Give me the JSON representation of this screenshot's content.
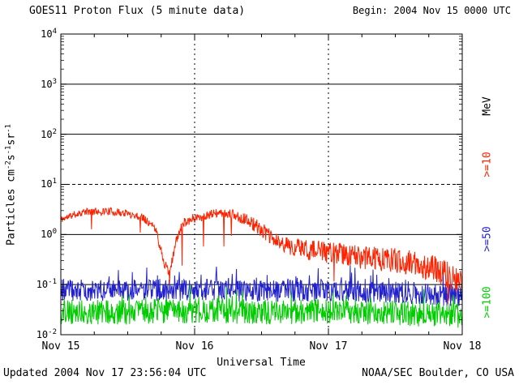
{
  "footer": {
    "updated": "Updated 2004 Nov 17 23:56:04 UTC",
    "source": "NOAA/SEC Boulder, CO USA"
  },
  "chart_data": {
    "type": "line",
    "title": "GOES11 Proton Flux (5 minute data)",
    "begin_label": "Begin: 2004 Nov 15 0000 UTC",
    "xlabel": "Universal Time",
    "ylabel": "Particles cm-2 s-1 sr-1",
    "ylabel_parts": [
      {
        "t": "Particles cm"
      },
      {
        "s": "-2"
      },
      {
        "t": "s"
      },
      {
        "s": "-1"
      },
      {
        "t": "sr"
      },
      {
        "s": "-1"
      }
    ],
    "y_scale": "log10",
    "ylim_log10": [
      -2,
      4
    ],
    "x_range_hours": [
      0,
      72
    ],
    "points": 864,
    "y_ticks": [
      {
        "b": "10",
        "e": "4",
        "log10": 4
      },
      {
        "b": "10",
        "e": "3",
        "log10": 3
      },
      {
        "b": "10",
        "e": "2",
        "log10": 2
      },
      {
        "b": "10",
        "e": "1",
        "log10": 1
      },
      {
        "b": "10",
        "e": "0",
        "log10": 0
      },
      {
        "b": "10",
        "e": "-1",
        "log10": -1
      },
      {
        "b": "10",
        "e": "-2",
        "log10": -2
      }
    ],
    "x_ticks": [
      {
        "label": "Nov 15",
        "hour": 0
      },
      {
        "label": "Nov 16",
        "hour": 24
      },
      {
        "label": "Nov 17",
        "hour": 48
      },
      {
        "label": "Nov 18",
        "hour": 72
      }
    ],
    "ref_lines": {
      "horizontal": [
        {
          "log10": 3,
          "style": "solid"
        },
        {
          "log10": 2,
          "style": "solid"
        },
        {
          "log10": 1,
          "style": "dashed"
        },
        {
          "log10": 0,
          "style": "solid"
        },
        {
          "log10": -1,
          "style": "solid"
        }
      ],
      "vertical_hours": [
        24,
        48
      ]
    },
    "legend": {
      "unit_label": "MeV",
      "entries": [
        {
          "label": ">=10",
          "color": "#ff2200"
        },
        {
          "label": ">=50",
          "color": "#2222cc"
        },
        {
          "label": ">=100",
          "color": "#00cc00"
        }
      ]
    },
    "series": [
      {
        "id": "ge10",
        "name": ">=10 MeV",
        "color": "#ff2200",
        "seed": 11,
        "z": 3,
        "trend_hours": [
          0,
          2,
          4,
          8,
          12,
          15,
          17,
          18.5,
          19.5,
          20.5,
          22,
          24,
          28,
          31,
          34,
          36,
          38,
          40,
          43,
          46,
          48,
          52,
          56,
          60,
          64,
          68,
          70,
          72
        ],
        "trend_log10": [
          0.3,
          0.38,
          0.45,
          0.47,
          0.42,
          0.33,
          0.1,
          -0.55,
          -0.8,
          -0.2,
          0.25,
          0.33,
          0.42,
          0.4,
          0.25,
          0.1,
          -0.1,
          -0.2,
          -0.28,
          -0.33,
          -0.35,
          -0.42,
          -0.48,
          -0.52,
          -0.6,
          -0.72,
          -0.85,
          -1.0
        ],
        "noise_hours": [
          0,
          15,
          22,
          30,
          36,
          48,
          72
        ],
        "noise_amp": [
          0.07,
          0.08,
          0.1,
          0.09,
          0.15,
          0.22,
          0.28
        ],
        "spike_down_prob": 0.012,
        "spike_down_mag": 0.9,
        "spike_up_prob": 0,
        "spike_up_mag": 0
      },
      {
        "id": "ge50",
        "name": ">=50 MeV",
        "color": "#2222cc",
        "seed": 23,
        "z": 1,
        "trend_hours": [
          0,
          12,
          24,
          36,
          48,
          60,
          72
        ],
        "trend_log10": [
          -1.1,
          -1.12,
          -1.1,
          -1.13,
          -1.12,
          -1.15,
          -1.22
        ],
        "noise_hours": [
          0,
          72
        ],
        "noise_amp": [
          0.22,
          0.22
        ],
        "spike_down_prob": 0,
        "spike_down_mag": 0,
        "spike_up_prob": 0.08,
        "spike_up_mag": 0.35
      },
      {
        "id": "ge100",
        "name": ">=100 MeV",
        "color": "#00cc00",
        "seed": 37,
        "z": 2,
        "trend_hours": [
          0,
          12,
          24,
          36,
          48,
          60,
          72
        ],
        "trend_log10": [
          -1.55,
          -1.55,
          -1.52,
          -1.55,
          -1.53,
          -1.57,
          -1.62
        ],
        "noise_hours": [
          0,
          72
        ],
        "noise_amp": [
          0.25,
          0.25
        ],
        "spike_down_prob": 0,
        "spike_down_mag": 0,
        "spike_up_prob": 0.08,
        "spike_up_mag": 0.3
      }
    ]
  }
}
